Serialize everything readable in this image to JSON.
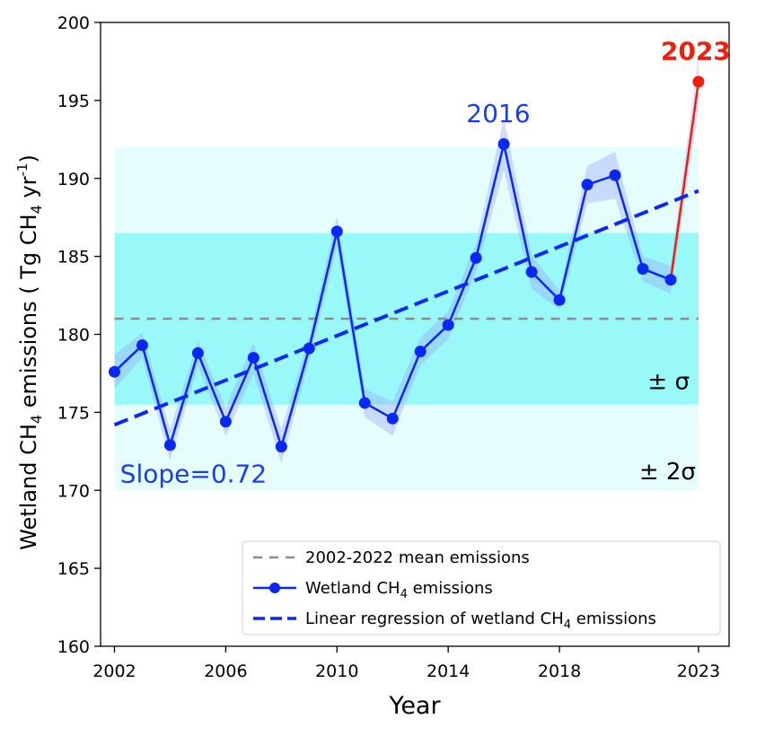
{
  "chart_data": {
    "type": "line",
    "xlabel": "Year",
    "ylabel": {
      "before": "Wetland CH",
      "sub": "4",
      "middle": " emissions ( Tg CH",
      "sub2": "4",
      "after": " yr",
      "sup": "-1",
      "close": ")"
    },
    "xlim": [
      2001.5,
      2024.1
    ],
    "ylim": [
      160,
      200
    ],
    "xticks": [
      2002,
      2006,
      2010,
      2014,
      2018,
      2023
    ],
    "xtick_labels": [
      "2002",
      "2006",
      "2010",
      "2014",
      "2018",
      "2023"
    ],
    "yticks": [
      160,
      165,
      170,
      175,
      180,
      185,
      190,
      195,
      200
    ],
    "ytick_labels": [
      "160",
      "165",
      "170",
      "175",
      "180",
      "185",
      "190",
      "195",
      "200"
    ],
    "grid": false,
    "legend_placement": "lower-right",
    "series": [
      {
        "name": "Wetland CH4 emissions",
        "color": "#0a28f5",
        "x": [
          2002,
          2003,
          2004,
          2005,
          2006,
          2007,
          2008,
          2009,
          2010,
          2011,
          2012,
          2013,
          2014,
          2015,
          2016,
          2017,
          2018,
          2019,
          2020,
          2021,
          2022
        ],
        "y": [
          177.6,
          179.3,
          172.9,
          178.8,
          174.4,
          178.5,
          172.8,
          179.1,
          186.6,
          175.6,
          174.6,
          178.9,
          180.6,
          184.9,
          192.2,
          184.0,
          182.2,
          189.6,
          190.2,
          184.2,
          183.5
        ],
        "band_halfwidth": [
          1.1,
          0.8,
          1.0,
          0.8,
          0.9,
          1.0,
          1.1,
          0.8,
          1.0,
          0.9,
          1.1,
          0.9,
          0.9,
          0.9,
          1.7,
          1.1,
          0.6,
          1.2,
          1.5,
          0.8,
          0.9
        ]
      },
      {
        "name": "2023",
        "color": "#f01e0a",
        "x": [
          2022,
          2023
        ],
        "y": [
          183.5,
          196.2
        ],
        "band_halfwidth": [
          0.9,
          1.8
        ]
      }
    ],
    "mean_line": {
      "name": "2002-2022 mean emissions",
      "y": 181.0,
      "x": [
        2002,
        2023
      ],
      "color": "#8c8c8c"
    },
    "regression": {
      "name": "Linear regression of wetland CH4 emissions",
      "x": [
        2002,
        2023
      ],
      "y": [
        174.2,
        189.2
      ],
      "slope": 0.72,
      "color": "#0a28f5"
    },
    "sigma_band": {
      "low": 175.5,
      "high": 186.5,
      "x": [
        2002,
        2023
      ],
      "color": "#7ff5f5"
    },
    "two_sigma_band": {
      "low": 170.0,
      "high": 192.0,
      "x": [
        2002,
        2023
      ],
      "color": "#e6fdfd"
    },
    "annotations": {
      "peak_2016": "2016",
      "peak_2023": "2023",
      "slope": "Slope=0.72",
      "sigma": "± σ",
      "two_sigma": "± 2σ"
    },
    "legend": {
      "mean": "2002-2022 mean emissions",
      "wetland": {
        "before": "Wetland CH",
        "sub": "4",
        "after": " emissions"
      },
      "regression": {
        "before": "Linear regression of wetland CH",
        "sub": "4",
        "after": " emissions"
      }
    }
  }
}
